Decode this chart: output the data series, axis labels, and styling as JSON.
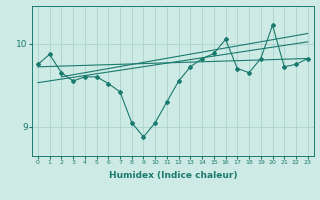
{
  "x": [
    0,
    1,
    2,
    3,
    4,
    5,
    6,
    7,
    8,
    9,
    10,
    11,
    12,
    13,
    14,
    15,
    16,
    17,
    18,
    19,
    20,
    21,
    22,
    23
  ],
  "y_main": [
    9.75,
    9.87,
    9.65,
    9.55,
    9.6,
    9.6,
    9.52,
    9.42,
    9.05,
    8.88,
    9.05,
    9.3,
    9.55,
    9.72,
    9.82,
    9.88,
    10.05,
    9.7,
    9.65,
    9.82,
    10.22,
    9.72,
    9.75,
    9.82
  ],
  "trend_line1": [
    [
      0,
      9.72
    ],
    [
      23,
      9.82
    ]
  ],
  "trend_line2": [
    [
      0,
      9.53
    ],
    [
      23,
      10.02
    ]
  ],
  "trend_line3": [
    [
      2,
      9.6
    ],
    [
      23,
      10.12
    ]
  ],
  "color_main": "#1a7a6e",
  "color_bg": "#ceeae4",
  "color_grid": "#aad4cc",
  "xlabel": "Humidex (Indice chaleur)",
  "yticks": [
    9,
    10
  ],
  "ylim": [
    8.65,
    10.45
  ],
  "xlim": [
    -0.5,
    23.5
  ]
}
